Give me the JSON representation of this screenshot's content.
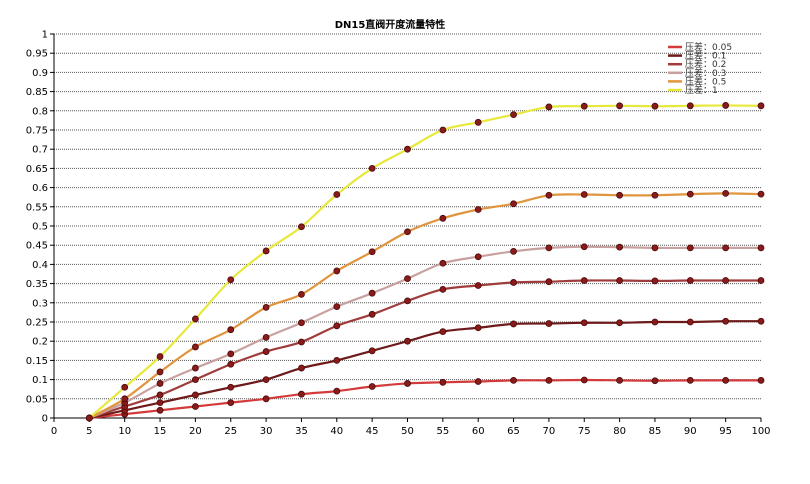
{
  "chart_data": {
    "type": "line",
    "title": "DN15直阀开度流量特性",
    "xlabel": "",
    "ylabel": "",
    "xlim": [
      0,
      100
    ],
    "ylim": [
      0,
      1
    ],
    "x_ticks": [
      "0",
      "5",
      "10",
      "15",
      "20",
      "25",
      "30",
      "35",
      "40",
      "45",
      "50",
      "55",
      "60",
      "65",
      "70",
      "75",
      "80",
      "85",
      "90",
      "95",
      "100"
    ],
    "y_ticks": [
      "0",
      "0.05",
      "0.1",
      "0.15",
      "0.2",
      "0.25",
      "0.3",
      "0.35",
      "0.4",
      "0.45",
      "0.5",
      "0.55",
      "0.6",
      "0.65",
      "0.7",
      "0.75",
      "0.8",
      "0.85",
      "0.9",
      "0.95",
      "1"
    ],
    "grid": true,
    "legend_position": "top-right",
    "x": [
      5,
      10,
      15,
      20,
      25,
      30,
      35,
      40,
      45,
      50,
      55,
      60,
      65,
      70,
      75,
      80,
      85,
      90,
      95,
      100
    ],
    "series": [
      {
        "name": "压差：0.05",
        "color": "#d43a3a",
        "values": [
          0,
          0.01,
          0.02,
          0.03,
          0.04,
          0.05,
          0.062,
          0.07,
          0.082,
          0.09,
          0.093,
          0.095,
          0.098,
          0.098,
          0.099,
          0.098,
          0.097,
          0.098,
          0.098,
          0.098
        ]
      },
      {
        "name": "压差：0.1",
        "color": "#6e1a1a",
        "values": [
          0,
          0.02,
          0.04,
          0.06,
          0.08,
          0.1,
          0.13,
          0.15,
          0.175,
          0.2,
          0.225,
          0.235,
          0.245,
          0.246,
          0.248,
          0.248,
          0.25,
          0.25,
          0.252,
          0.252
        ]
      },
      {
        "name": "压差：0.2",
        "color": "#a03c3c",
        "values": [
          0,
          0.03,
          0.06,
          0.1,
          0.14,
          0.173,
          0.198,
          0.24,
          0.27,
          0.305,
          0.335,
          0.345,
          0.353,
          0.355,
          0.358,
          0.358,
          0.357,
          0.358,
          0.358,
          0.358
        ]
      },
      {
        "name": "压差：0.3",
        "color": "#c9a0a0",
        "values": [
          0,
          0.04,
          0.09,
          0.13,
          0.167,
          0.21,
          0.248,
          0.29,
          0.325,
          0.363,
          0.403,
          0.42,
          0.434,
          0.443,
          0.446,
          0.445,
          0.443,
          0.443,
          0.443,
          0.443
        ]
      },
      {
        "name": "压差：0.5",
        "color": "#e0943c",
        "values": [
          0,
          0.05,
          0.12,
          0.185,
          0.23,
          0.288,
          0.322,
          0.383,
          0.433,
          0.485,
          0.52,
          0.543,
          0.558,
          0.58,
          0.582,
          0.58,
          0.58,
          0.583,
          0.585,
          0.583
        ]
      },
      {
        "name": "压差：1",
        "color": "#e8e83a",
        "values": [
          0,
          0.08,
          0.16,
          0.258,
          0.36,
          0.435,
          0.498,
          0.582,
          0.65,
          0.7,
          0.75,
          0.77,
          0.79,
          0.81,
          0.812,
          0.813,
          0.812,
          0.813,
          0.814,
          0.813
        ]
      }
    ]
  }
}
